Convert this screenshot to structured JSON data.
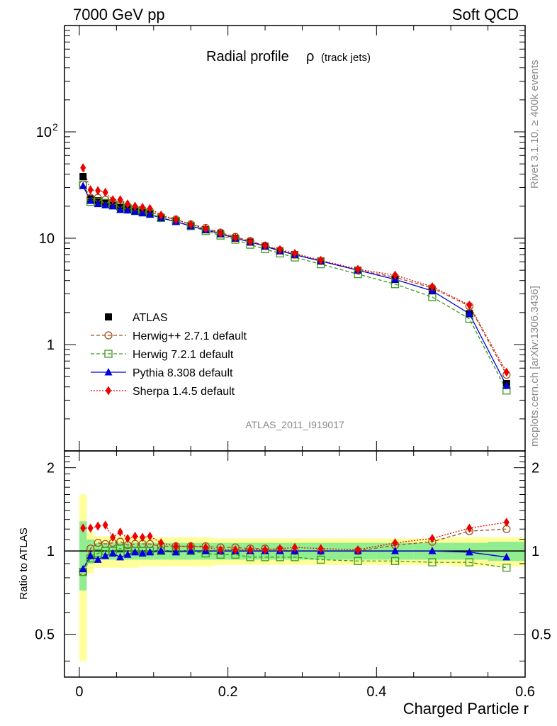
{
  "header": {
    "left": "7000 GeV pp",
    "right": "Soft QCD"
  },
  "side_labels": {
    "rivet": "Rivet 3.1.10, ≥ 400k events",
    "mcplots": "mcplots.cern.ch [arXiv:1306.3436]"
  },
  "chart_data": {
    "type": "line",
    "title": "Radial profile",
    "title_symbol": "ρ",
    "title_suffix": "(track jets)",
    "watermark": "ATLAS_2011_I919017",
    "xlabel": "Charged Particle r",
    "ylabel": "",
    "ratio_ylabel": "Ratio to ATLAS",
    "xlim": [
      -0.02,
      0.6
    ],
    "ylim_log": [
      0.1,
      1000
    ],
    "ratio_ylim": [
      0.35,
      2.3
    ],
    "yscale": "log",
    "x_ticks": [
      "0",
      "0.2",
      "0.4",
      "0.6"
    ],
    "y_ticks": [
      "1",
      "10",
      "10^2"
    ],
    "ratio_y_ticks": [
      "0.5",
      "1",
      "2"
    ],
    "legend_position": "lower-left",
    "x": [
      0.005,
      0.015,
      0.025,
      0.035,
      0.045,
      0.055,
      0.065,
      0.075,
      0.085,
      0.095,
      0.11,
      0.13,
      0.15,
      0.17,
      0.19,
      0.21,
      0.23,
      0.25,
      0.27,
      0.29,
      0.325,
      0.375,
      0.425,
      0.475,
      0.525,
      0.575
    ],
    "series": [
      {
        "name": "ATLAS",
        "color": "#000000",
        "marker": "square-filled",
        "values": [
          38,
          23.5,
          22.5,
          21.5,
          20.5,
          19.5,
          19,
          18,
          17.5,
          17,
          15.5,
          14.5,
          13,
          12,
          11,
          10,
          9.2,
          8.4,
          7.6,
          7,
          6.1,
          5,
          4.1,
          3.2,
          1.95,
          0.43
        ]
      },
      {
        "name": "Herwig++ 2.7.1 default",
        "color": "#a0501e",
        "marker": "circle-open",
        "line": "dashed",
        "values": [
          32,
          24,
          24,
          23,
          22,
          21,
          20,
          19,
          18.5,
          18,
          16,
          15,
          13.5,
          12.5,
          11.3,
          10.3,
          9.4,
          8.5,
          7.7,
          7,
          6.1,
          5,
          4.3,
          3.4,
          2.3,
          0.52
        ]
      },
      {
        "name": "Herwig 7.2.1 default",
        "color": "#3a9a1e",
        "marker": "square-open",
        "line": "dashed",
        "values": [
          32,
          22,
          22,
          21.5,
          20.5,
          20,
          19,
          18,
          17.5,
          17,
          15.5,
          14.5,
          13,
          11.7,
          10.6,
          9.7,
          8.7,
          7.9,
          7.2,
          6.6,
          5.7,
          4.6,
          3.7,
          2.8,
          1.75,
          0.37
        ]
      },
      {
        "name": "Pythia 8.308 default",
        "color": "#0000dd",
        "marker": "triangle-filled",
        "line": "solid",
        "values": [
          31,
          22.5,
          21,
          20.5,
          20,
          18.5,
          18.3,
          17.8,
          17.2,
          16.7,
          15.5,
          14.3,
          13,
          12,
          11,
          10,
          9.2,
          8.4,
          7.6,
          7,
          6.1,
          5,
          4.1,
          3.2,
          1.95,
          0.41
        ]
      },
      {
        "name": "Sherpa 1.4.5 default",
        "color": "#ee0000",
        "marker": "diamond-filled",
        "line": "dotted",
        "values": [
          46,
          28.5,
          28,
          27,
          23,
          23,
          21,
          20,
          19.5,
          19,
          16.5,
          15,
          13.5,
          12.3,
          11.1,
          10.1,
          9.3,
          8.5,
          7.8,
          7.2,
          6.2,
          5.1,
          4.5,
          3.5,
          2.35,
          0.55
        ]
      }
    ],
    "ratio_series": [
      {
        "name": "Herwig++ 2.7.1 default",
        "values": [
          0.84,
          1.02,
          1.07,
          1.06,
          1.07,
          1.08,
          1.05,
          1.06,
          1.06,
          1.06,
          1.04,
          1.04,
          1.04,
          1.04,
          1.03,
          1.03,
          1.02,
          1.02,
          1.01,
          1.0,
          1.0,
          1.0,
          1.05,
          1.08,
          1.18,
          1.2
        ]
      },
      {
        "name": "Herwig 7.2.1 default",
        "values": [
          0.84,
          0.94,
          0.98,
          1.0,
          1.0,
          1.02,
          1.0,
          1.0,
          1.0,
          1.0,
          1.0,
          1.0,
          1.0,
          0.98,
          0.97,
          0.97,
          0.95,
          0.95,
          0.95,
          0.95,
          0.93,
          0.92,
          0.92,
          0.91,
          0.91,
          0.87
        ]
      },
      {
        "name": "Pythia 8.308 default",
        "values": [
          0.86,
          0.96,
          0.93,
          0.96,
          0.98,
          0.95,
          0.97,
          0.99,
          0.98,
          0.99,
          1.0,
          0.99,
          1.0,
          1.0,
          1.0,
          1.0,
          1.0,
          1.0,
          1.0,
          1.0,
          1.0,
          1.0,
          1.0,
          1.0,
          0.99,
          0.95
        ]
      },
      {
        "name": "Sherpa 1.4.5 default",
        "values": [
          1.21,
          1.21,
          1.23,
          1.24,
          1.12,
          1.17,
          1.11,
          1.13,
          1.12,
          1.13,
          1.07,
          1.04,
          1.04,
          1.03,
          1.01,
          1.01,
          1.01,
          1.01,
          1.02,
          1.03,
          1.02,
          1.01,
          1.07,
          1.11,
          1.21,
          1.27
        ]
      }
    ],
    "uncertainty_bands": {
      "x_edges": [
        0,
        0.01,
        0.02,
        0.03,
        0.04,
        0.05,
        0.06,
        0.07,
        0.08,
        0.09,
        0.1,
        0.12,
        0.14,
        0.16,
        0.18,
        0.2,
        0.22,
        0.24,
        0.26,
        0.28,
        0.3,
        0.35,
        0.4,
        0.45,
        0.5,
        0.55,
        0.6
      ],
      "inner_color": "#90ee90",
      "outer_color": "#ffff99",
      "inner": [
        0.28,
        0.1,
        0.07,
        0.07,
        0.07,
        0.07,
        0.07,
        0.07,
        0.07,
        0.07,
        0.07,
        0.07,
        0.07,
        0.07,
        0.07,
        0.07,
        0.07,
        0.07,
        0.07,
        0.07,
        0.07,
        0.07,
        0.07,
        0.07,
        0.07,
        0.08
      ],
      "outer": [
        0.6,
        0.17,
        0.13,
        0.13,
        0.13,
        0.13,
        0.13,
        0.13,
        0.12,
        0.12,
        0.12,
        0.12,
        0.12,
        0.12,
        0.11,
        0.11,
        0.11,
        0.11,
        0.11,
        0.11,
        0.11,
        0.11,
        0.11,
        0.11,
        0.12,
        0.12
      ]
    }
  }
}
